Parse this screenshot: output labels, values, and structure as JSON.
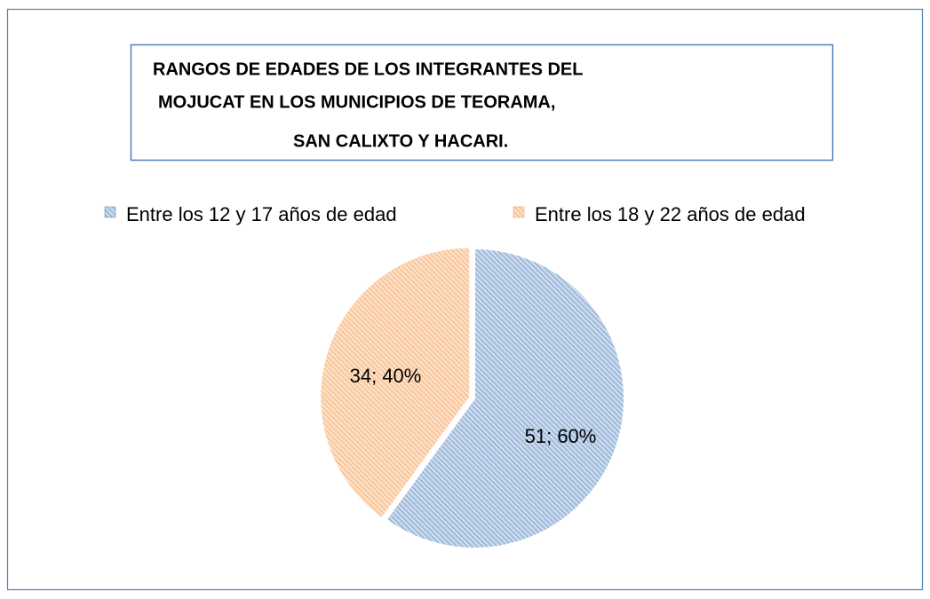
{
  "chart_data": {
    "type": "pie",
    "title": [
      "RANGOS DE EDADES DE LOS INTEGRANTES DEL",
      "MOJUCAT EN LOS MUNICIPIOS DE TEORAMA,",
      "SAN CALIXTO Y HACARI."
    ],
    "categories": [
      "Entre los 12 y 17 años de edad",
      "Entre los 18 y 22 años de edad"
    ],
    "values": [
      51,
      34
    ],
    "value_labels": [
      "51; 60%",
      "34; 40%"
    ],
    "colors": [
      "#4f81bd",
      "#f79646"
    ],
    "legend": "top"
  }
}
